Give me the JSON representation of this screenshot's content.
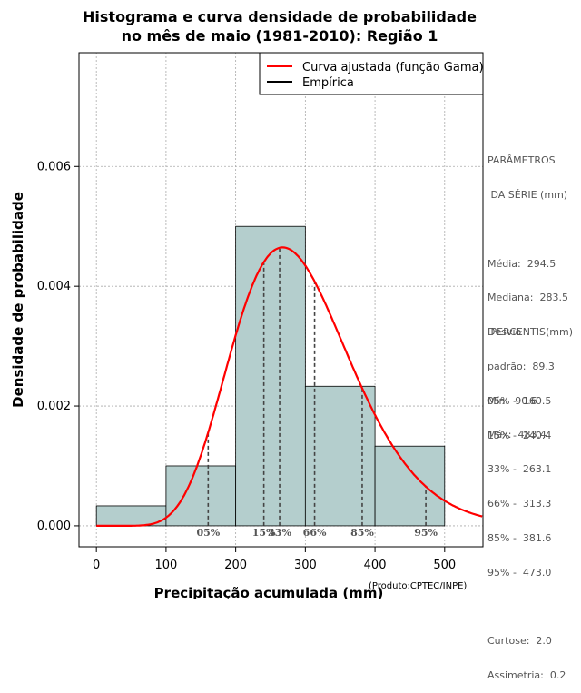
{
  "chart_data": {
    "type": "bar",
    "title_line1": "Histograma e curva densidade de probabilidade",
    "title_line2": "no mês de maio (1981-2010): Região 1",
    "xlabel": "Precipitação acumulada (mm)",
    "ylabel": "Densidade de probabilidade",
    "xlim": [
      -25,
      555
    ],
    "ylim": [
      -0.00035,
      0.0079
    ],
    "x_ticks": [
      0,
      100,
      200,
      300,
      400,
      500
    ],
    "x_tick_labels": [
      "0",
      "100",
      "200",
      "300",
      "400",
      "500"
    ],
    "y_ticks": [
      0.0,
      0.002,
      0.004,
      0.006
    ],
    "y_tick_labels": [
      "0.000",
      "0.002",
      "0.004",
      "0.006"
    ],
    "grid": true,
    "bars": [
      {
        "x0": 0,
        "x1": 100,
        "value": 0.000333
      },
      {
        "x0": 100,
        "x1": 200,
        "value": 0.001
      },
      {
        "x0": 200,
        "x1": 300,
        "value": 0.005
      },
      {
        "x0": 300,
        "x1": 400,
        "value": 0.00233
      },
      {
        "x0": 400,
        "x1": 500,
        "value": 0.00133
      }
    ],
    "series": [
      {
        "name": "Curva ajustada (função Gama)",
        "color": "#ff0000"
      },
      {
        "name": "Empírica",
        "color": "#000000"
      }
    ],
    "legend_position": "top-right",
    "gamma_fit": {
      "mean": 294.5,
      "sd": 89.3
    },
    "percentile_markers": [
      {
        "label": "05%",
        "x": 160.5
      },
      {
        "label": "15%",
        "x": 240.4
      },
      {
        "label": "33%",
        "x": 263.1
      },
      {
        "label": "66%",
        "x": 313.3
      },
      {
        "label": "85%",
        "x": 381.6
      },
      {
        "label": "95%",
        "x": 473.0
      }
    ],
    "bar_fill": "#b4cecd",
    "curve_color": "#ff0000"
  },
  "parametros": {
    "header1": "PARÂMETROS",
    "header2": " DA SÉRIE (mm)",
    "lines": [
      "Média:  294.5",
      "Mediana:  283.5",
      "Desvio",
      "padrão:  89.3",
      "Mín:  90.6",
      "Máx:  483.4"
    ]
  },
  "percentis": {
    "header": " PERCENTIS(mm)",
    "lines": [
      "05% -  160.5",
      "15% -  240.4",
      "33% -  263.1",
      "66% -  313.3",
      "85% -  381.6",
      "95% -  473.0"
    ],
    "extra_lines": [
      "Curtose:  2.0",
      "Assimetria:  0.2"
    ]
  },
  "credit": "(Produto:CPTEC/INPE)"
}
